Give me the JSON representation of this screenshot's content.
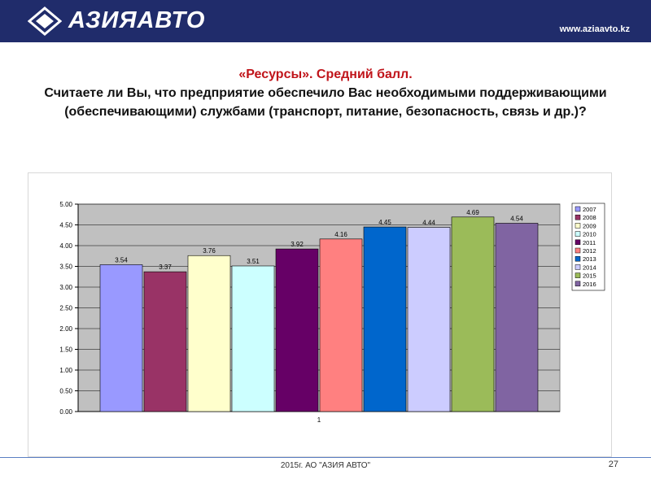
{
  "header": {
    "logo_text": "АЗИЯАВТО",
    "site_url": "www.aziaavto.kz",
    "bg_color": "#202c6b"
  },
  "title": {
    "line1": "«Ресурсы». Средний балл.",
    "line2": "Считаете ли Вы, что предприятие обеспечило Вас необходимыми поддерживающими (обеспечивающими) службами (транспорт, питание, безопасность, связь и др.)?"
  },
  "chart_data": {
    "type": "bar",
    "categories": [
      "1"
    ],
    "series": [
      {
        "name": "2007",
        "values": [
          3.54
        ],
        "color": "#9999ff"
      },
      {
        "name": "2008",
        "values": [
          3.37
        ],
        "color": "#993366"
      },
      {
        "name": "2009",
        "values": [
          3.76
        ],
        "color": "#ffffcc"
      },
      {
        "name": "2010",
        "values": [
          3.51
        ],
        "color": "#ccffff"
      },
      {
        "name": "2011",
        "values": [
          3.92
        ],
        "color": "#660066"
      },
      {
        "name": "2012",
        "values": [
          4.16
        ],
        "color": "#ff8080"
      },
      {
        "name": "2013",
        "values": [
          4.45
        ],
        "color": "#0066cc"
      },
      {
        "name": "2014",
        "values": [
          4.44
        ],
        "color": "#ccccff"
      },
      {
        "name": "2015",
        "values": [
          4.69
        ],
        "color": "#9bbb59"
      },
      {
        "name": "2016",
        "values": [
          4.54
        ],
        "color": "#8064a2"
      }
    ],
    "data_labels": [
      "3.54",
      "3.37",
      "3.76",
      "3.51",
      "3.92",
      "4.16",
      "4.45",
      "4.44",
      "4.69",
      "4.54"
    ],
    "y_ticks": [
      "0.00",
      "0.50",
      "1.00",
      "1.50",
      "2.00",
      "2.50",
      "3.00",
      "3.50",
      "4.00",
      "4.50",
      "5.00"
    ],
    "ylim": [
      0,
      5
    ],
    "grid": true,
    "plot_bg": "#c0c0c0",
    "legend_position": "right",
    "title": "",
    "xlabel": "",
    "ylabel": ""
  },
  "footer": {
    "text": "2015г. АО \"АЗИЯ АВТО\"",
    "page_number": "27"
  }
}
